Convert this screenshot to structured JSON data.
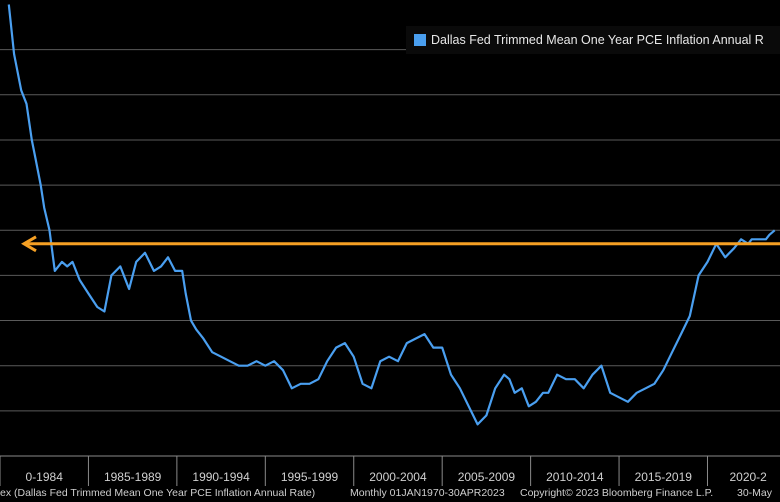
{
  "chart_data": {
    "type": "line",
    "series": [
      {
        "name": "Dallas Fed Trimmed Mean One Year PCE Inflation Annual Rate",
        "color": "#4a9ff0",
        "x": [
          1980.0,
          1980.3,
          1980.7,
          1981.0,
          1981.3,
          1981.5,
          1981.8,
          1982.0,
          1982.3,
          1982.6,
          1983.0,
          1983.3,
          1983.6,
          1984.0,
          1984.5,
          1985.0,
          1985.4,
          1985.8,
          1986.3,
          1986.8,
          1987.2,
          1987.7,
          1988.2,
          1988.6,
          1989.0,
          1989.4,
          1989.8,
          1990.0,
          1990.3,
          1990.6,
          1991.0,
          1991.5,
          1992.0,
          1992.5,
          1993.0,
          1993.5,
          1994.0,
          1994.5,
          1995.0,
          1995.5,
          1996.0,
          1996.5,
          1997.0,
          1997.5,
          1998.0,
          1998.5,
          1999.0,
          1999.5,
          2000.0,
          2000.5,
          2001.0,
          2001.5,
          2002.0,
          2002.5,
          2003.0,
          2003.5,
          2004.0,
          2004.5,
          2005.0,
          2005.5,
          2006.0,
          2006.5,
          2007.0,
          2007.5,
          2008.0,
          2008.3,
          2008.6,
          2009.0,
          2009.4,
          2009.8,
          2010.2,
          2010.5,
          2011.0,
          2011.5,
          2012.0,
          2012.5,
          2013.0,
          2013.5,
          2014.0,
          2014.5,
          2015.0,
          2015.5,
          2016.0,
          2016.5,
          2017.0,
          2017.5,
          2018.0,
          2018.5,
          2019.0,
          2019.5,
          2020.0,
          2020.5,
          2021.0,
          2021.4,
          2021.8,
          2022.0,
          2022.4,
          2022.8,
          2023.0,
          2023.3
        ],
        "y": [
          10.0,
          8.9,
          8.1,
          7.8,
          7.0,
          6.6,
          6.0,
          5.5,
          5.0,
          4.1,
          4.3,
          4.2,
          4.3,
          3.9,
          3.6,
          3.3,
          3.2,
          4.0,
          4.2,
          3.7,
          4.3,
          4.5,
          4.1,
          4.2,
          4.4,
          4.1,
          4.1,
          3.6,
          3.0,
          2.8,
          2.6,
          2.3,
          2.2,
          2.1,
          2.0,
          2.0,
          2.1,
          2.0,
          2.1,
          1.9,
          1.5,
          1.6,
          1.6,
          1.7,
          2.1,
          2.4,
          2.5,
          2.2,
          1.6,
          1.5,
          2.1,
          2.2,
          2.1,
          2.5,
          2.6,
          2.7,
          2.4,
          2.4,
          1.8,
          1.5,
          1.1,
          0.7,
          0.9,
          1.5,
          1.8,
          1.7,
          1.4,
          1.5,
          1.1,
          1.2,
          1.4,
          1.4,
          1.8,
          1.7,
          1.7,
          1.5,
          1.8,
          2.0,
          1.4,
          1.3,
          1.2,
          1.4,
          1.5,
          1.6,
          1.9,
          2.3,
          2.7,
          3.1,
          4.0,
          4.3,
          4.7,
          4.4,
          4.6,
          4.8,
          4.7,
          4.8,
          4.8,
          4.8,
          4.9,
          5.0
        ]
      }
    ],
    "reference_line": {
      "y": 4.7,
      "color": "#f5a024",
      "style": "arrow-left"
    },
    "xlim": [
      1979.5,
      2023.6
    ],
    "ylim": [
      0,
      10.1
    ],
    "y_gridlines": [
      1,
      2,
      3,
      4,
      5,
      6,
      7,
      8,
      9
    ],
    "x_tick_labels": [
      "0-1984",
      "1985-1989",
      "1990-1994",
      "1995-1999",
      "2000-2004",
      "2005-2009",
      "2010-2014",
      "2015-2019",
      "2020-2"
    ],
    "x_tick_centers": [
      1982.0,
      1987.0,
      1992.0,
      1997.0,
      2002.0,
      2007.0,
      2012.0,
      2017.0,
      2021.8
    ],
    "x_separators": [
      1979.5,
      1984.5,
      1989.5,
      1994.5,
      1999.5,
      2004.5,
      2009.5,
      2014.5,
      2019.5
    ],
    "grid": true,
    "legend_position": "top-right",
    "title": "",
    "xlabel": "",
    "ylabel": ""
  },
  "legend": {
    "label": "Dallas Fed Trimmed Mean One Year PCE Inflation Annual R",
    "color": "#4a9ff0"
  },
  "footer": {
    "source": "ex (Dallas Fed Trimmed Mean One Year PCE Inflation Annual Rate)",
    "frequency": "Monthly 01JAN1970-30APR2023",
    "copyright": "Copyright© 2023 Bloomberg Finance L.P.",
    "date": "30-May"
  }
}
